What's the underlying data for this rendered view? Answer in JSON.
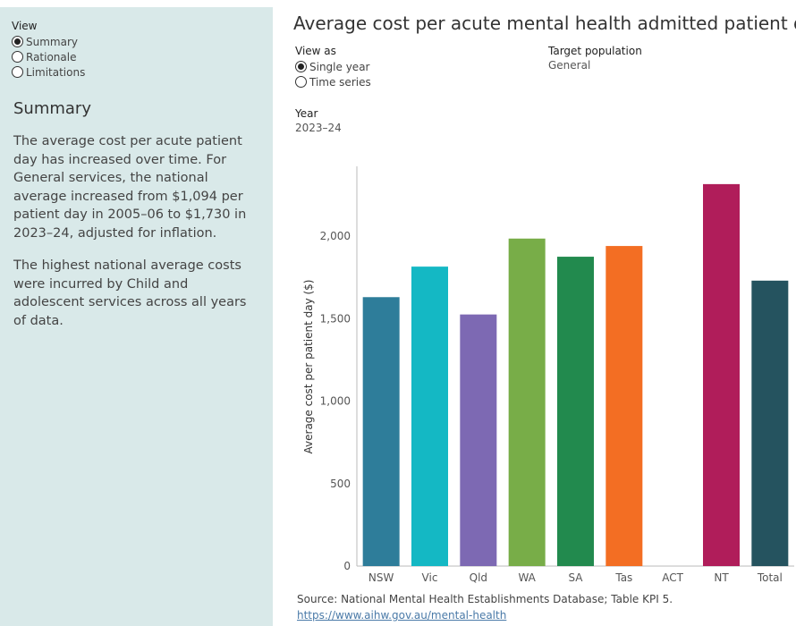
{
  "sidebar": {
    "view_label": "View",
    "view_options": [
      "Summary",
      "Rationale",
      "Limitations"
    ],
    "view_selected": 0,
    "heading": "Summary",
    "paragraphs": [
      "The average cost per acute patient day has increased over time. For General services, the national average increased from $1,094 per patient day in 2005–06 to $1,730 in 2023–24, adjusted for inflation.",
      "The highest national average costs were incurred by Child and adolescent services across all years of data."
    ]
  },
  "main": {
    "title": "Average cost per acute mental health admitted patient day",
    "view_as_label": "View as",
    "view_as_options": [
      "Single year",
      "Time series"
    ],
    "view_as_selected": 0,
    "target_label": "Target population",
    "target_value": "General",
    "year_label": "Year",
    "year_value": "2023–24"
  },
  "chart_data": {
    "type": "bar",
    "categories": [
      "NSW",
      "Vic",
      "Qld",
      "WA",
      "SA",
      "Tas",
      "ACT",
      "NT",
      "Total"
    ],
    "values": [
      1630,
      1815,
      1525,
      1985,
      1875,
      1940,
      null,
      2315,
      1730
    ],
    "colors": [
      "#2e7d9a",
      "#14b8c4",
      "#7d69b3",
      "#78ad48",
      "#228a4e",
      "#f36e23",
      "#999999",
      "#b01d5a",
      "#25535f"
    ],
    "ylabel": "Average cost per patient day ($)",
    "ylim": [
      0,
      2500
    ],
    "yticks": [
      0,
      500,
      1000,
      1500,
      2000
    ],
    "ytick_labels": [
      "0",
      "500",
      "1,000",
      "1,500",
      "2,000"
    ],
    "grid": false
  },
  "source": {
    "text": "Source: National Mental Health Establishments Database; Table KPI 5.",
    "link": "https://www.aihw.gov.au/mental-health"
  }
}
